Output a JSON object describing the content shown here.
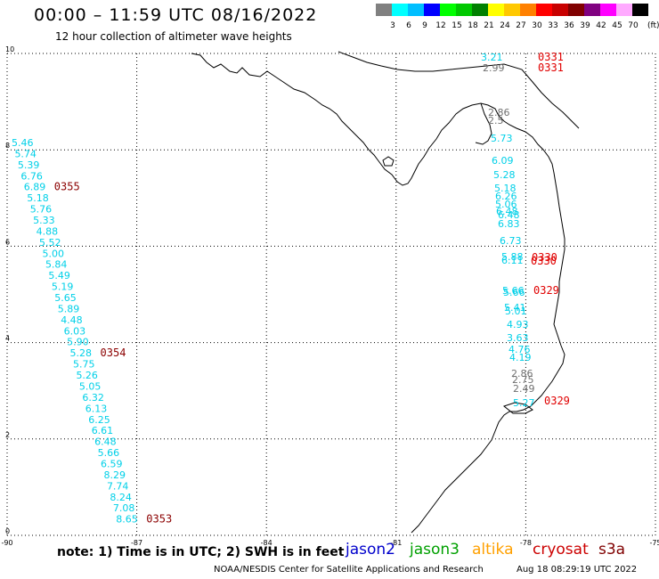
{
  "title": "00:00 – 11:59 UTC 08/16/2022",
  "subtitle": "12 hour collection of altimeter wave heights",
  "colorbar": {
    "labels": [
      "3",
      "6",
      "9",
      "12",
      "15",
      "18",
      "21",
      "24",
      "27",
      "30",
      "33",
      "36",
      "39",
      "42",
      "45",
      "70"
    ],
    "unit": "(ft)",
    "colors": [
      "#808080",
      "#00ffff",
      "#00bfff",
      "#0000ff",
      "#00ff00",
      "#00c800",
      "#008000",
      "#ffff00",
      "#ffc800",
      "#ff8000",
      "#ff0000",
      "#c80000",
      "#800000",
      "#800080",
      "#ff00ff",
      "#ffaaff",
      "#000000"
    ]
  },
  "axes": {
    "x_ticks": [
      "-90",
      "-87",
      "-84",
      "-81",
      "-78",
      "-75"
    ],
    "y_ticks": [
      "0",
      "2",
      "4",
      "6",
      "8",
      "10"
    ],
    "x_range": [
      -90,
      -75
    ],
    "y_range": [
      0,
      10
    ]
  },
  "colors": {
    "cyan": "#00d0e8",
    "gray": "#707070",
    "dark_red": "#8b0000",
    "red": "#e00000",
    "jason2": "#0000cc",
    "jason3": "#00a000",
    "altika": "#ffa000",
    "cryosat": "#cc0000",
    "s3a": "#800000"
  },
  "track_west": {
    "values": [
      "5.46",
      "5.74",
      "5.39",
      "6.76",
      "6.89",
      "5.18",
      "5.76",
      "5.33",
      "4.88",
      "5.52",
      "5.00",
      "5.84",
      "5.49",
      "5.19",
      "5.65",
      "5.89",
      "4.48",
      "6.03",
      "5.90",
      "5.28",
      "5.75",
      "5.26",
      "5.05",
      "6.32",
      "6.13",
      "6.25",
      "6.61",
      "6.48",
      "5.66",
      "6.59",
      "8.29",
      "7.74",
      "8.24",
      "7.08",
      "8.65"
    ],
    "time_labels": [
      {
        "text": "0355",
        "after_index": 4
      },
      {
        "text": "0354",
        "after_index": 19
      },
      {
        "text": "0353",
        "after_index": 34
      }
    ]
  },
  "track_east": {
    "labels": [
      {
        "text": "3.21",
        "c": "cyan"
      },
      {
        "text": "0331",
        "c": "red"
      },
      {
        "text": "2.99",
        "c": "gray"
      },
      {
        "text": "0331",
        "c": "red"
      },
      {
        "text": "2.86",
        "c": "gray"
      },
      {
        "text": "2.5",
        "c": "gray"
      },
      {
        "text": "5.73",
        "c": "cyan"
      },
      {
        "text": "6.09",
        "c": "cyan"
      },
      {
        "text": "5.28",
        "c": "cyan"
      },
      {
        "text": "5.18",
        "c": "cyan"
      },
      {
        "text": "6.26",
        "c": "cyan"
      },
      {
        "text": "5.06",
        "c": "cyan"
      },
      {
        "text": "6.48",
        "c": "cyan"
      },
      {
        "text": "6.48",
        "c": "cyan"
      },
      {
        "text": "6.83",
        "c": "cyan"
      },
      {
        "text": "6.73",
        "c": "cyan"
      },
      {
        "text": "5.88",
        "c": "cyan"
      },
      {
        "text": "6.11",
        "c": "cyan"
      },
      {
        "text": "0330",
        "c": "red"
      },
      {
        "text": "0330",
        "c": "red"
      },
      {
        "text": "5.66",
        "c": "cyan"
      },
      {
        "text": "5.66",
        "c": "cyan"
      },
      {
        "text": "0329",
        "c": "red"
      },
      {
        "text": "5.41",
        "c": "cyan"
      },
      {
        "text": "5.01",
        "c": "cyan"
      },
      {
        "text": "4.93",
        "c": "cyan"
      },
      {
        "text": "3.63",
        "c": "cyan"
      },
      {
        "text": "4.76",
        "c": "cyan"
      },
      {
        "text": "4.19",
        "c": "cyan"
      },
      {
        "text": "2.86",
        "c": "gray"
      },
      {
        "text": "2.75",
        "c": "gray"
      },
      {
        "text": "2.49",
        "c": "gray"
      },
      {
        "text": "5.27",
        "c": "cyan"
      },
      {
        "text": "0329",
        "c": "red"
      }
    ]
  },
  "legend": {
    "note": "note:  1) Time is in UTC;  2) SWH is in feet",
    "jason2": "jason2",
    "jason3": "jason3",
    "altika": "altika",
    "cryosat": "cryosat",
    "s3a": "s3a"
  },
  "footer": {
    "left": "NOAA/NESDIS Center for Satellite Applications and Research",
    "right": "Aug 18 08:29:19 UTC 2022"
  }
}
